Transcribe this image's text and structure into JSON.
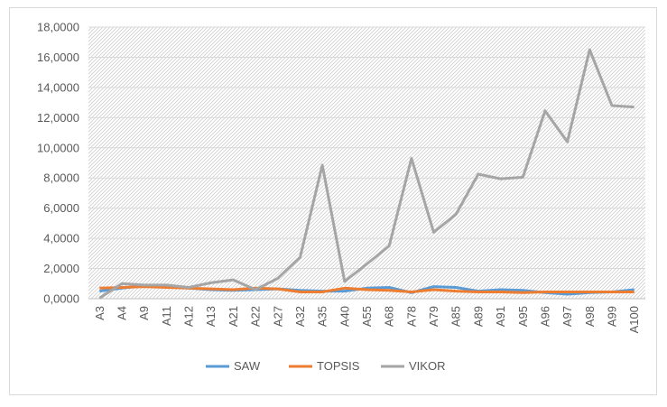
{
  "chart_data": {
    "type": "line",
    "title": "",
    "xlabel": "",
    "ylabel": "",
    "ylim": [
      0,
      18
    ],
    "yticks": [
      "0,0000",
      "2,0000",
      "4,0000",
      "6,0000",
      "8,0000",
      "10,0000",
      "12,0000",
      "14,0000",
      "16,0000",
      "18,0000"
    ],
    "grid": true,
    "legend_position": "bottom",
    "categories": [
      "A3",
      "A4",
      "A9",
      "A11",
      "A12",
      "A13",
      "A21",
      "A22",
      "A27",
      "A32",
      "A35",
      "A40",
      "A55",
      "A68",
      "A78",
      "A79",
      "A85",
      "A89",
      "A91",
      "A95",
      "A96",
      "A97",
      "A98",
      "A99",
      "A100"
    ],
    "series": [
      {
        "name": "SAW",
        "color": "#5b9bd5",
        "values": [
          0.5,
          0.7,
          0.85,
          0.8,
          0.7,
          0.6,
          0.55,
          0.6,
          0.65,
          0.55,
          0.5,
          0.5,
          0.7,
          0.75,
          0.4,
          0.8,
          0.75,
          0.5,
          0.6,
          0.55,
          0.4,
          0.3,
          0.4,
          0.45,
          0.6
        ]
      },
      {
        "name": "TOPSIS",
        "color": "#ed7d31",
        "values": [
          0.7,
          0.75,
          0.8,
          0.75,
          0.7,
          0.65,
          0.6,
          0.7,
          0.65,
          0.45,
          0.45,
          0.7,
          0.6,
          0.55,
          0.45,
          0.6,
          0.5,
          0.45,
          0.45,
          0.4,
          0.45,
          0.45,
          0.45,
          0.45,
          0.45
        ]
      },
      {
        "name": "VIKOR",
        "color": "#a5a5a5",
        "values": [
          0.05,
          1.0,
          0.9,
          0.9,
          0.75,
          1.05,
          1.25,
          0.6,
          1.35,
          2.75,
          8.85,
          1.15,
          2.3,
          3.5,
          9.3,
          4.4,
          5.6,
          8.25,
          7.95,
          8.05,
          12.45,
          10.4,
          16.5,
          12.8,
          12.7
        ]
      }
    ]
  }
}
